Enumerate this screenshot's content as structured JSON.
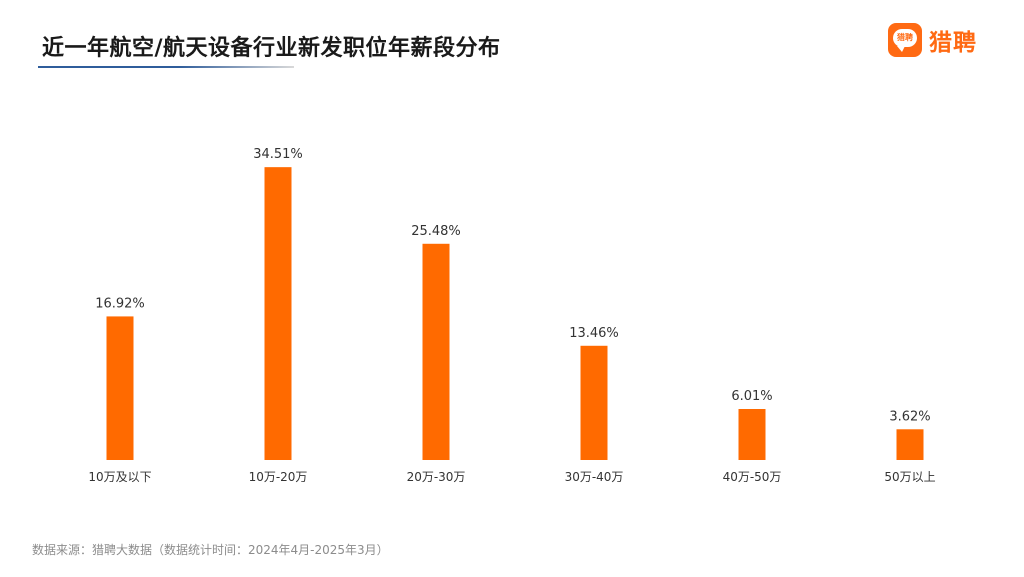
{
  "header": {
    "title": "近一年航空/航天设备行业新发职位年薪段分布"
  },
  "logo": {
    "mark_text": "猎聘",
    "name": "猎聘",
    "color": "#ff6a13"
  },
  "footer": {
    "source": "数据来源：猎聘大数据（数据统计时间：2024年4月-2025年3月）"
  },
  "chart_data": {
    "type": "bar",
    "title": "近一年航空/航天设备行业新发职位年薪段分布",
    "categories": [
      "10万及以下",
      "10万-20万",
      "20万-30万",
      "30万-40万",
      "40万-50万",
      "50万以上"
    ],
    "values": [
      16.92,
      34.51,
      25.48,
      13.46,
      6.01,
      3.62
    ],
    "value_labels": [
      "16.92%",
      "34.51%",
      "25.48%",
      "13.46%",
      "6.01%",
      "3.62%"
    ],
    "unit": "%",
    "ylim": [
      0,
      35
    ],
    "grid": false,
    "legend": "none",
    "bar_color": "#ff6a00"
  }
}
